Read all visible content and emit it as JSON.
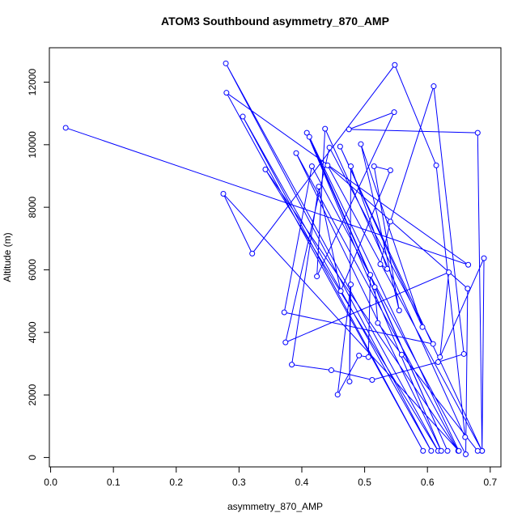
{
  "chart_data": {
    "type": "line",
    "title": "ATOM3 Southbound asymmetry_870_AMP",
    "xlabel": "asymmetry_870_AMP",
    "ylabel": "Altitude (m)",
    "series": [
      {
        "color": "#0000ff",
        "marker": "open-circle",
        "x": [
          0.024,
          0.665,
          0.28,
          0.593,
          0.306,
          0.606,
          0.279,
          0.617,
          0.342,
          0.649,
          0.391,
          0.622,
          0.408,
          0.632,
          0.412,
          0.65,
          0.275,
          0.321,
          0.548,
          0.614,
          0.66,
          0.437,
          0.424,
          0.547,
          0.475,
          0.68,
          0.687,
          0.69,
          0.62,
          0.634,
          0.374,
          0.444,
          0.609,
          0.372,
          0.416,
          0.661,
          0.664,
          0.441,
          0.687,
          0.461,
          0.592,
          0.494,
          0.555,
          0.515,
          0.541,
          0.462,
          0.427,
          0.384,
          0.447,
          0.512,
          0.617,
          0.658,
          0.61,
          0.541,
          0.525,
          0.536,
          0.478,
          0.476,
          0.478,
          0.457,
          0.491,
          0.506,
          0.509,
          0.516,
          0.521,
          0.559,
          0.68
        ],
        "y": [
          10540,
          6160,
          11660,
          210,
          10900,
          210,
          12600,
          210,
          9210,
          210,
          9730,
          210,
          10380,
          210,
          10250,
          210,
          8430,
          6520,
          12550,
          9340,
          650,
          10510,
          5790,
          11040,
          10490,
          10380,
          210,
          6370,
          3210,
          5920,
          3680,
          9910,
          3630,
          4640,
          9310,
          100,
          5400,
          9340,
          210,
          9940,
          4170,
          10020,
          4700,
          9310,
          9180,
          5320,
          8660,
          2970,
          2790,
          2480,
          3050,
          3310,
          11870,
          7540,
          6180,
          6030,
          9310,
          2430,
          5530,
          2010,
          3260,
          3210,
          5840,
          5450,
          4300,
          3290,
          210
        ]
      }
    ],
    "xlim": [
      -0.002,
      0.717
    ],
    "ylim": [
      -300,
      13100
    ],
    "xticks": [
      {
        "value": 0,
        "label": "0.0"
      },
      0.1,
      0.2,
      0.3,
      0.4,
      0.5,
      0.6,
      0.7
    ],
    "yticks": [
      0,
      2000,
      4000,
      6000,
      8000,
      10000,
      12000
    ]
  }
}
